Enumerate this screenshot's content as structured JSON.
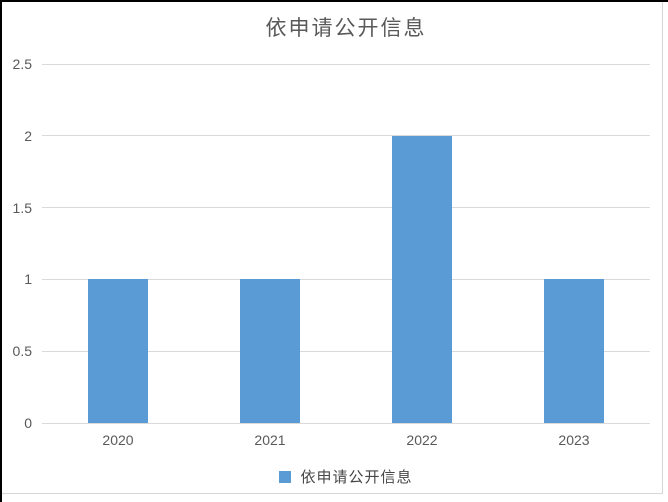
{
  "chart_data": {
    "type": "bar",
    "title": "依申请公开信息",
    "categories": [
      "2020",
      "2021",
      "2022",
      "2023"
    ],
    "series": [
      {
        "name": "依申请公开信息",
        "values": [
          1,
          1,
          2,
          1
        ]
      }
    ],
    "xlabel": "",
    "ylabel": "",
    "ylim": [
      0,
      2.5
    ],
    "yticks": [
      0,
      0.5,
      1,
      1.5,
      2,
      2.5
    ],
    "grid": true,
    "legend_position": "bottom",
    "colors": {
      "bar": "#5B9BD5",
      "gridline": "#D9D9D9",
      "axis_text": "#595959",
      "title_text": "#595959",
      "legend_text": "#474747",
      "frame_border": "#D6D6D6",
      "outer_border": "#000000"
    }
  }
}
